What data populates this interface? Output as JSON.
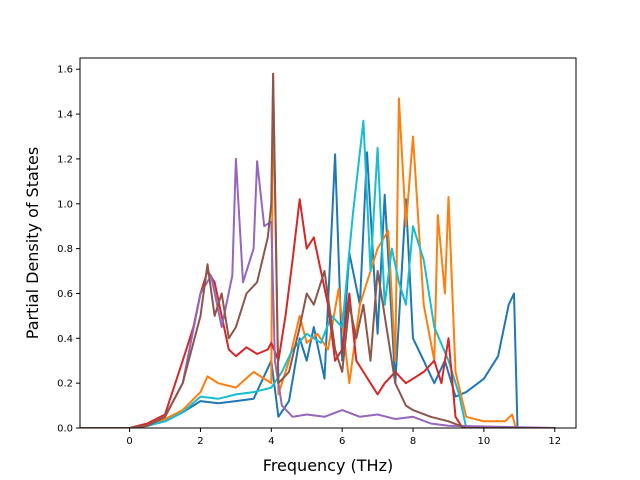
{
  "chart_data": {
    "type": "line",
    "title": "",
    "xlabel": "Frequency (THz)",
    "ylabel": "Partial Density of States",
    "xlim": [
      -1.4,
      12.6
    ],
    "ylim": [
      0.0,
      1.65
    ],
    "xticks": [
      0,
      2,
      4,
      6,
      8,
      10,
      12
    ],
    "xtick_labels": [
      "0",
      "2",
      "4",
      "6",
      "8",
      "10",
      "12"
    ],
    "yticks": [
      0.0,
      0.2,
      0.4,
      0.6,
      0.8,
      1.0,
      1.2,
      1.4,
      1.6
    ],
    "ytick_labels": [
      "0.0",
      "0.2",
      "0.4",
      "0.6",
      "0.8",
      "1.0",
      "1.2",
      "1.4",
      "1.6"
    ],
    "grid": false,
    "legend": "none",
    "series": [
      {
        "name": "series-blue",
        "color": "#1f77b4",
        "x": [
          -1.4,
          0.0,
          0.5,
          1.0,
          1.5,
          2.0,
          2.5,
          3.0,
          3.5,
          4.0,
          4.2,
          4.5,
          4.8,
          5.0,
          5.2,
          5.5,
          5.8,
          6.0,
          6.2,
          6.5,
          6.7,
          7.0,
          7.2,
          7.5,
          7.8,
          8.0,
          8.3,
          8.6,
          8.9,
          9.2,
          9.5,
          10.0,
          10.4,
          10.7,
          10.85,
          10.95,
          12.0
        ],
        "y": [
          0.0,
          0.0,
          0.01,
          0.03,
          0.07,
          0.12,
          0.11,
          0.12,
          0.13,
          0.3,
          0.05,
          0.12,
          0.4,
          0.3,
          0.45,
          0.22,
          1.22,
          0.3,
          0.78,
          0.55,
          1.23,
          0.42,
          1.04,
          0.2,
          1.02,
          0.4,
          0.3,
          0.2,
          0.3,
          0.14,
          0.16,
          0.22,
          0.32,
          0.55,
          0.6,
          0.0,
          0.0
        ]
      },
      {
        "name": "series-orange",
        "color": "#ff7f0e",
        "x": [
          -1.4,
          0.0,
          0.5,
          1.0,
          1.5,
          2.0,
          2.2,
          2.5,
          3.0,
          3.5,
          4.0,
          4.05,
          4.2,
          4.5,
          4.8,
          5.0,
          5.3,
          5.6,
          5.9,
          6.2,
          6.5,
          6.8,
          7.0,
          7.3,
          7.5,
          7.6,
          7.8,
          8.0,
          8.3,
          8.6,
          8.7,
          8.9,
          9.0,
          9.2,
          9.5,
          10.0,
          10.6,
          10.8,
          10.9,
          12.0
        ],
        "y": [
          0.0,
          0.0,
          0.01,
          0.04,
          0.08,
          0.16,
          0.23,
          0.2,
          0.18,
          0.25,
          0.2,
          1.58,
          0.15,
          0.3,
          0.5,
          0.38,
          0.42,
          0.35,
          0.62,
          0.2,
          0.55,
          0.7,
          0.8,
          0.88,
          0.3,
          1.47,
          0.9,
          1.3,
          0.55,
          0.3,
          0.95,
          0.6,
          1.03,
          0.25,
          0.05,
          0.03,
          0.03,
          0.06,
          0.0,
          0.0
        ]
      },
      {
        "name": "series-cyan",
        "color": "#17becf",
        "x": [
          -1.4,
          0.0,
          0.5,
          1.0,
          1.5,
          2.0,
          2.5,
          3.0,
          3.5,
          4.0,
          4.3,
          4.6,
          5.0,
          5.4,
          5.7,
          6.0,
          6.3,
          6.6,
          6.8,
          7.0,
          7.2,
          7.4,
          7.6,
          7.8,
          8.0,
          8.3,
          8.6,
          9.0,
          9.3,
          9.5,
          12.0
        ],
        "y": [
          0.0,
          0.0,
          0.01,
          0.03,
          0.07,
          0.14,
          0.13,
          0.15,
          0.16,
          0.18,
          0.25,
          0.35,
          0.42,
          0.38,
          0.5,
          0.45,
          0.95,
          1.37,
          0.7,
          1.25,
          0.55,
          0.8,
          0.65,
          0.55,
          0.9,
          0.75,
          0.45,
          0.3,
          0.15,
          0.0,
          0.0
        ]
      },
      {
        "name": "series-red",
        "color": "#d62728",
        "x": [
          -1.4,
          0.0,
          0.5,
          1.0,
          1.5,
          1.8,
          2.0,
          2.2,
          2.4,
          2.6,
          2.8,
          3.0,
          3.3,
          3.6,
          3.9,
          4.0,
          4.2,
          4.4,
          4.6,
          4.8,
          5.0,
          5.2,
          5.4,
          5.6,
          5.8,
          6.0,
          6.2,
          6.4,
          6.6,
          6.8,
          7.0,
          7.2,
          7.5,
          7.8,
          8.0,
          8.3,
          8.6,
          8.8,
          9.0,
          9.2,
          9.4,
          12.0
        ],
        "y": [
          0.0,
          0.0,
          0.02,
          0.06,
          0.3,
          0.45,
          0.6,
          0.7,
          0.65,
          0.5,
          0.35,
          0.32,
          0.36,
          0.33,
          0.35,
          0.38,
          0.3,
          0.5,
          0.75,
          1.02,
          0.8,
          0.85,
          0.7,
          0.55,
          0.3,
          0.35,
          0.6,
          0.3,
          0.25,
          0.2,
          0.15,
          0.2,
          0.25,
          0.2,
          0.22,
          0.25,
          0.3,
          0.2,
          0.4,
          0.05,
          0.0,
          0.0
        ]
      },
      {
        "name": "series-purple",
        "color": "#9467bd",
        "x": [
          -1.4,
          0.0,
          0.5,
          1.0,
          1.5,
          2.0,
          2.3,
          2.6,
          2.9,
          3.0,
          3.2,
          3.5,
          3.6,
          3.8,
          4.0,
          4.1,
          4.3,
          4.6,
          5.0,
          5.5,
          6.0,
          6.5,
          7.0,
          7.5,
          8.0,
          8.5,
          9.0,
          12.0
        ],
        "y": [
          0.0,
          0.0,
          0.01,
          0.05,
          0.2,
          0.6,
          0.68,
          0.45,
          0.68,
          1.2,
          0.65,
          0.8,
          1.19,
          0.9,
          0.92,
          0.3,
          0.1,
          0.05,
          0.06,
          0.05,
          0.08,
          0.05,
          0.06,
          0.04,
          0.05,
          0.02,
          0.01,
          0.0
        ]
      },
      {
        "name": "series-brown",
        "color": "#8c564b",
        "x": [
          -1.4,
          0.0,
          0.5,
          1.0,
          1.5,
          2.0,
          2.2,
          2.4,
          2.6,
          2.8,
          3.0,
          3.3,
          3.6,
          3.9,
          4.0,
          4.05,
          4.2,
          4.5,
          4.8,
          5.0,
          5.2,
          5.5,
          5.8,
          6.0,
          6.2,
          6.4,
          6.6,
          6.8,
          7.0,
          7.2,
          7.5,
          7.8,
          8.0,
          8.5,
          9.0,
          9.5,
          12.0
        ],
        "y": [
          0.0,
          0.0,
          0.01,
          0.05,
          0.2,
          0.5,
          0.73,
          0.5,
          0.6,
          0.4,
          0.45,
          0.6,
          0.65,
          0.85,
          1.0,
          1.58,
          0.2,
          0.25,
          0.45,
          0.6,
          0.55,
          0.7,
          0.35,
          0.25,
          0.55,
          0.4,
          0.55,
          0.3,
          0.7,
          0.5,
          0.2,
          0.1,
          0.08,
          0.05,
          0.03,
          0.0,
          0.0
        ]
      }
    ]
  }
}
